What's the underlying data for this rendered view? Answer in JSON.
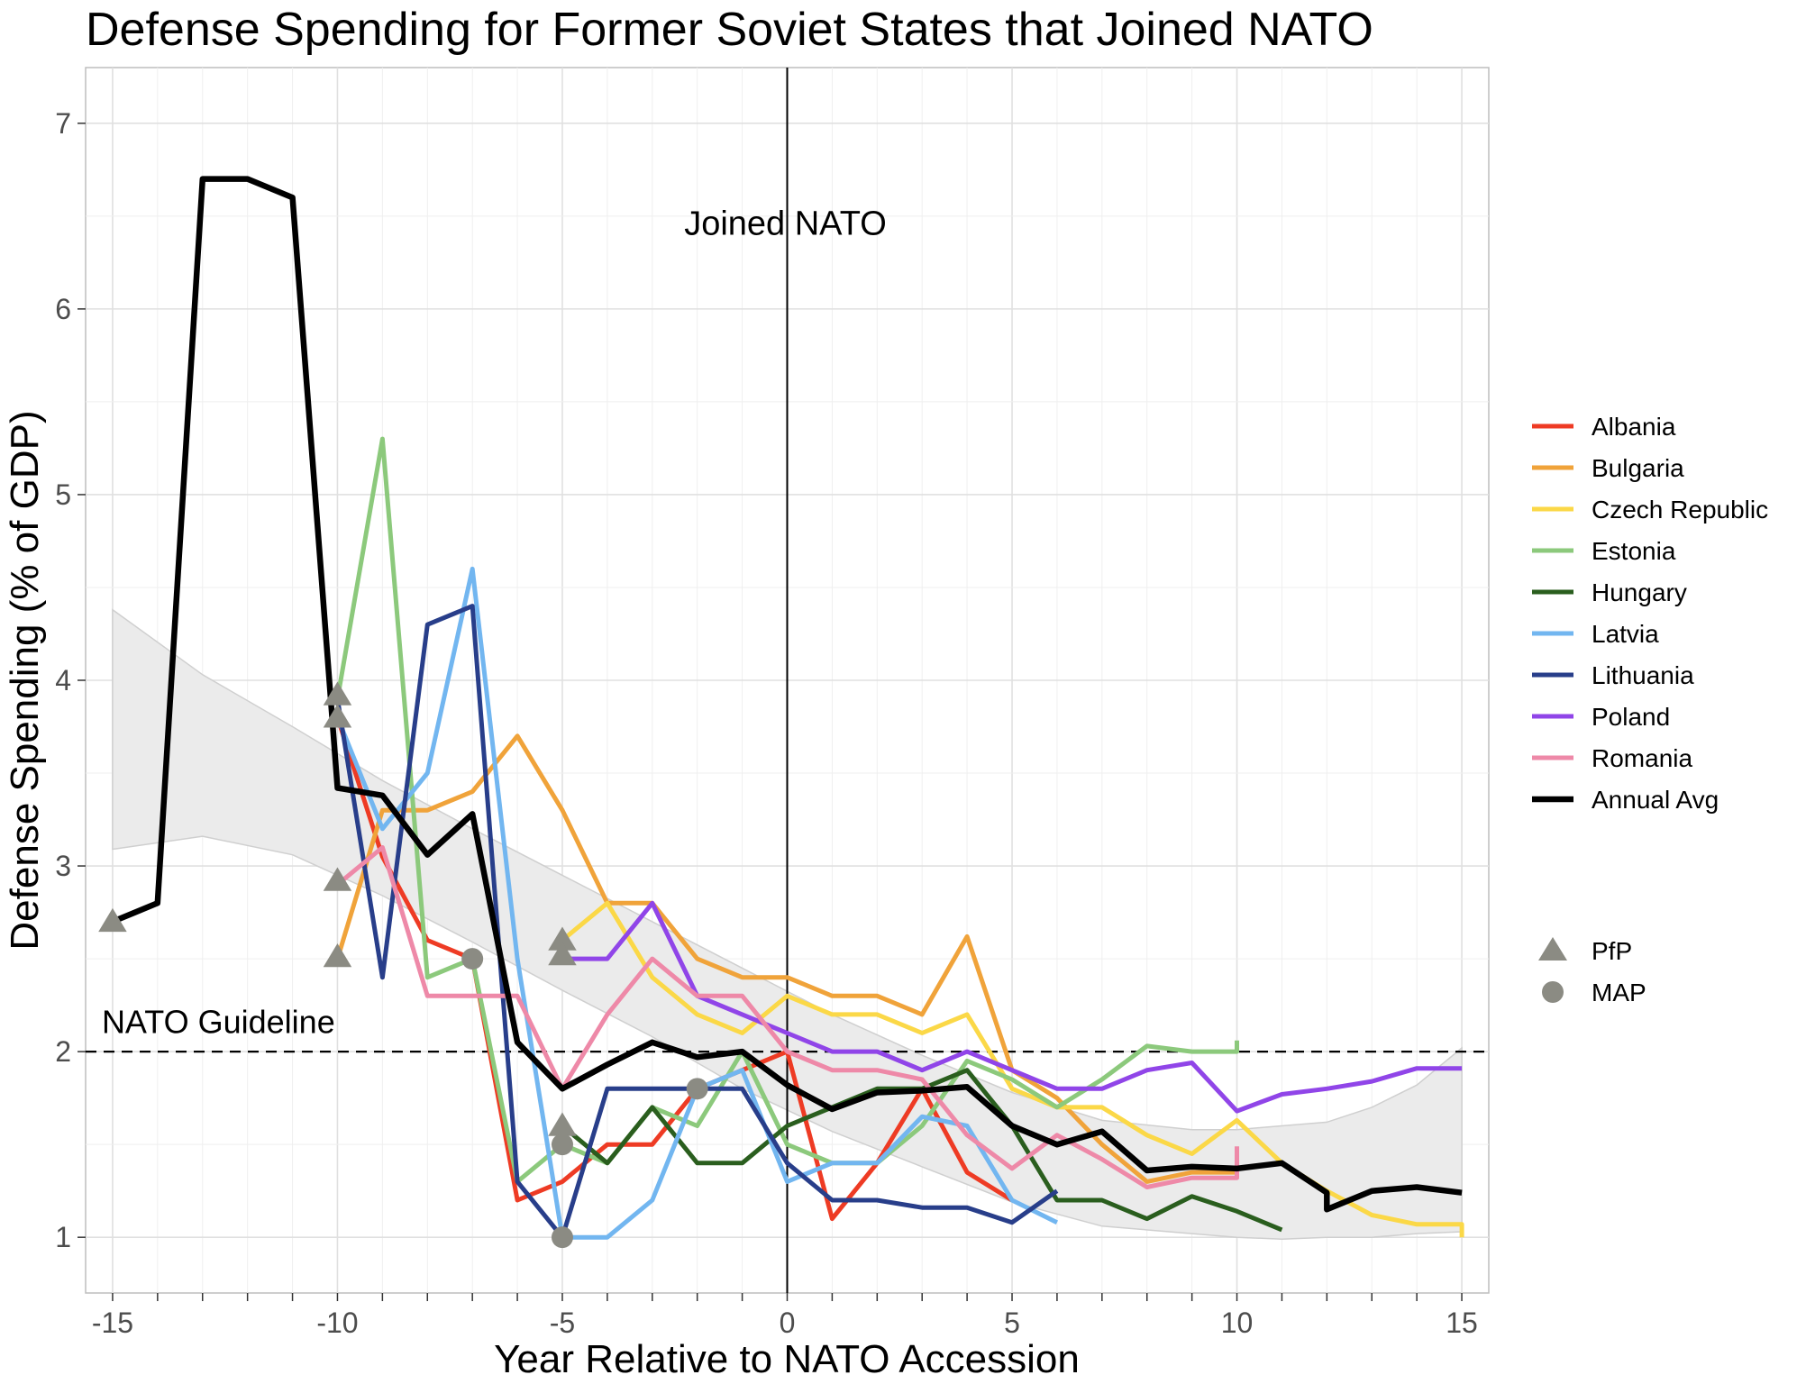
{
  "chart_data": {
    "type": "line",
    "title": "Defense Spending for Former Soviet States that Joined NATO",
    "xlabel": "Year Relative to NATO Accession",
    "ylabel": "Defense Spending (% of GDP)",
    "xlim": [
      -15.6,
      15.6
    ],
    "ylim": [
      0.7,
      7.3
    ],
    "x_ticks": [
      -15,
      -10,
      -5,
      0,
      5,
      10,
      15
    ],
    "x_tick_labels": [
      "-15",
      "-10",
      "-5",
      "0",
      "5",
      "10",
      "15"
    ],
    "y_ticks": [
      1,
      2,
      3,
      4,
      5,
      6,
      7
    ],
    "y_tick_labels": [
      "1",
      "2",
      "3",
      "4",
      "5",
      "6",
      "7"
    ],
    "grid": true,
    "legend_position": "right",
    "annotations": {
      "joined_label": "Joined NATO",
      "joined_x": 0,
      "guideline_label": "NATO Guideline",
      "guideline_y": 2
    },
    "series": [
      {
        "name": "Albania",
        "color": "#ee3b24",
        "x": [
          -10,
          -9,
          -8,
          -7,
          -6,
          -5,
          -4,
          -3,
          -2,
          -1,
          0,
          1,
          2,
          3,
          4,
          5
        ],
        "y": [
          3.8,
          3.05,
          2.6,
          2.5,
          1.2,
          1.3,
          1.5,
          1.5,
          1.8,
          1.9,
          2.0,
          1.1,
          1.4,
          1.8,
          1.35,
          1.2
        ]
      },
      {
        "name": "Bulgaria",
        "color": "#f0a33a",
        "x": [
          -10,
          -9,
          -8,
          -7,
          -6,
          -5,
          -4,
          -3,
          -2,
          -1,
          0,
          1,
          2,
          3,
          4,
          5,
          6,
          7,
          8,
          9,
          10
        ],
        "y": [
          2.5,
          3.3,
          3.3,
          3.4,
          3.7,
          3.3,
          2.8,
          2.8,
          2.5,
          2.4,
          2.4,
          2.3,
          2.3,
          2.2,
          2.62,
          1.9,
          1.75,
          1.5,
          1.3,
          1.35,
          1.35
        ]
      },
      {
        "name": "Czech Republic",
        "color": "#fbd847",
        "x": [
          -5,
          -4,
          -3,
          -2,
          -1,
          0,
          1,
          2,
          3,
          4,
          5,
          6,
          7,
          8,
          9,
          10,
          11,
          12,
          13,
          14,
          15,
          15
        ],
        "y": [
          2.6,
          2.8,
          2.4,
          2.2,
          2.1,
          2.3,
          2.2,
          2.2,
          2.1,
          2.2,
          1.8,
          1.7,
          1.7,
          1.55,
          1.45,
          1.63,
          1.4,
          1.25,
          1.12,
          1.07,
          1.07,
          1.0
        ]
      },
      {
        "name": "Estonia",
        "color": "#8cc97c",
        "x": [
          -10,
          -9,
          -8,
          -7,
          -6,
          -5,
          -4,
          -3,
          -2,
          -1,
          0,
          1,
          2,
          3,
          4,
          5,
          6,
          7,
          8,
          9,
          10,
          10
        ],
        "y": [
          3.9,
          5.3,
          2.4,
          2.5,
          1.3,
          1.5,
          1.4,
          1.7,
          1.6,
          2.0,
          1.5,
          1.4,
          1.4,
          1.6,
          1.95,
          1.85,
          1.7,
          1.85,
          2.03,
          2.0,
          2.0,
          2.06
        ]
      },
      {
        "name": "Hungary",
        "color": "#2a5e1e",
        "x": [
          -5,
          -4,
          -3,
          -2,
          -1,
          0,
          1,
          2,
          3,
          4,
          5,
          6,
          7,
          8,
          9,
          10,
          11
        ],
        "y": [
          1.6,
          1.4,
          1.7,
          1.4,
          1.4,
          1.6,
          1.7,
          1.8,
          1.8,
          1.9,
          1.6,
          1.2,
          1.2,
          1.1,
          1.22,
          1.14,
          1.04
        ]
      },
      {
        "name": "Latvia",
        "color": "#72b6f0",
        "x": [
          -10,
          -9,
          -8,
          -7,
          -6,
          -5,
          -4,
          -3,
          -2,
          -1,
          0,
          1,
          2,
          3,
          4,
          5,
          6
        ],
        "y": [
          3.8,
          3.2,
          3.5,
          4.6,
          2.5,
          1.0,
          1.0,
          1.2,
          1.8,
          1.9,
          1.3,
          1.4,
          1.4,
          1.65,
          1.6,
          1.2,
          1.08
        ]
      },
      {
        "name": "Lithuania",
        "color": "#283e8a",
        "x": [
          -10,
          -9,
          -8,
          -7,
          -6,
          -5,
          -4,
          -3,
          -2,
          -1,
          0,
          1,
          2,
          3,
          4,
          5,
          6
        ],
        "y": [
          3.9,
          2.4,
          4.3,
          4.4,
          1.3,
          1.0,
          1.8,
          1.8,
          1.8,
          1.8,
          1.4,
          1.2,
          1.2,
          1.16,
          1.16,
          1.08,
          1.25
        ]
      },
      {
        "name": "Poland",
        "color": "#9045e8",
        "x": [
          -5,
          -4,
          -3,
          -2,
          -1,
          0,
          1,
          2,
          3,
          4,
          5,
          6,
          7,
          8,
          9,
          10,
          11,
          12,
          13,
          14,
          15
        ],
        "y": [
          2.5,
          2.5,
          2.8,
          2.3,
          2.2,
          2.1,
          2.0,
          2.0,
          1.9,
          2.0,
          1.9,
          1.8,
          1.8,
          1.9,
          1.94,
          1.68,
          1.77,
          1.8,
          1.84,
          1.91,
          1.91
        ]
      },
      {
        "name": "Romania",
        "color": "#ee89a8",
        "x": [
          -10,
          -9,
          -8,
          -7,
          -6,
          -5,
          -4,
          -3,
          -2,
          -1,
          0,
          1,
          2,
          3,
          4,
          5,
          6,
          7,
          8,
          9,
          10,
          10
        ],
        "y": [
          2.9,
          3.1,
          2.3,
          2.3,
          2.3,
          1.8,
          2.2,
          2.5,
          2.3,
          2.3,
          2.0,
          1.9,
          1.9,
          1.85,
          1.55,
          1.37,
          1.55,
          1.42,
          1.27,
          1.32,
          1.32,
          1.49
        ]
      },
      {
        "name": "Annual Avg",
        "color": "#000000",
        "x": [
          -15,
          -14,
          -13,
          -12,
          -11,
          -10,
          -9,
          -8,
          -7,
          -6,
          -5,
          -4,
          -3,
          -2,
          -1,
          0,
          1,
          2,
          3,
          4,
          5,
          6,
          7,
          8,
          9,
          10,
          11,
          12,
          12,
          13,
          14,
          15
        ],
        "y": [
          2.7,
          2.8,
          6.7,
          6.7,
          6.6,
          3.42,
          3.38,
          3.06,
          3.28,
          2.05,
          1.8,
          1.93,
          2.05,
          1.97,
          2.0,
          1.82,
          1.69,
          1.78,
          1.79,
          1.81,
          1.6,
          1.5,
          1.57,
          1.36,
          1.38,
          1.37,
          1.4,
          1.24,
          1.15,
          1.25,
          1.27,
          1.24
        ]
      }
    ],
    "smooth_band": {
      "color": "#d9d9d9",
      "x": [
        -15,
        -13,
        -11,
        -9,
        -7,
        -5,
        -3,
        -1,
        1,
        3,
        5,
        7,
        9,
        10,
        11,
        12,
        13,
        14,
        15
      ],
      "upper": [
        4.38,
        4.03,
        3.75,
        3.46,
        3.2,
        2.95,
        2.7,
        2.45,
        2.2,
        1.98,
        1.78,
        1.63,
        1.58,
        1.58,
        1.6,
        1.62,
        1.7,
        1.82,
        2.02
      ],
      "lower": [
        3.09,
        3.16,
        3.06,
        2.84,
        2.59,
        2.33,
        2.08,
        1.8,
        1.57,
        1.38,
        1.19,
        1.06,
        1.02,
        1.0,
        0.99,
        1.0,
        1.0,
        1.02,
        1.03
      ]
    },
    "markers": {
      "legend": [
        {
          "name": "PfP",
          "shape": "triangle",
          "color": "#8b8b83"
        },
        {
          "name": "MAP",
          "shape": "circle",
          "color": "#8b8b83"
        }
      ],
      "pfp": [
        [
          -15,
          2.7
        ],
        [
          -10,
          3.92
        ],
        [
          -10,
          3.8
        ],
        [
          -10,
          2.92
        ],
        [
          -10,
          2.51
        ],
        [
          -5,
          2.6
        ],
        [
          -5,
          2.52
        ],
        [
          -5,
          1.6
        ]
      ],
      "map": [
        [
          -7,
          2.5
        ],
        [
          -5,
          1.5
        ],
        [
          -5,
          1.0
        ],
        [
          -2,
          1.8
        ]
      ]
    }
  }
}
